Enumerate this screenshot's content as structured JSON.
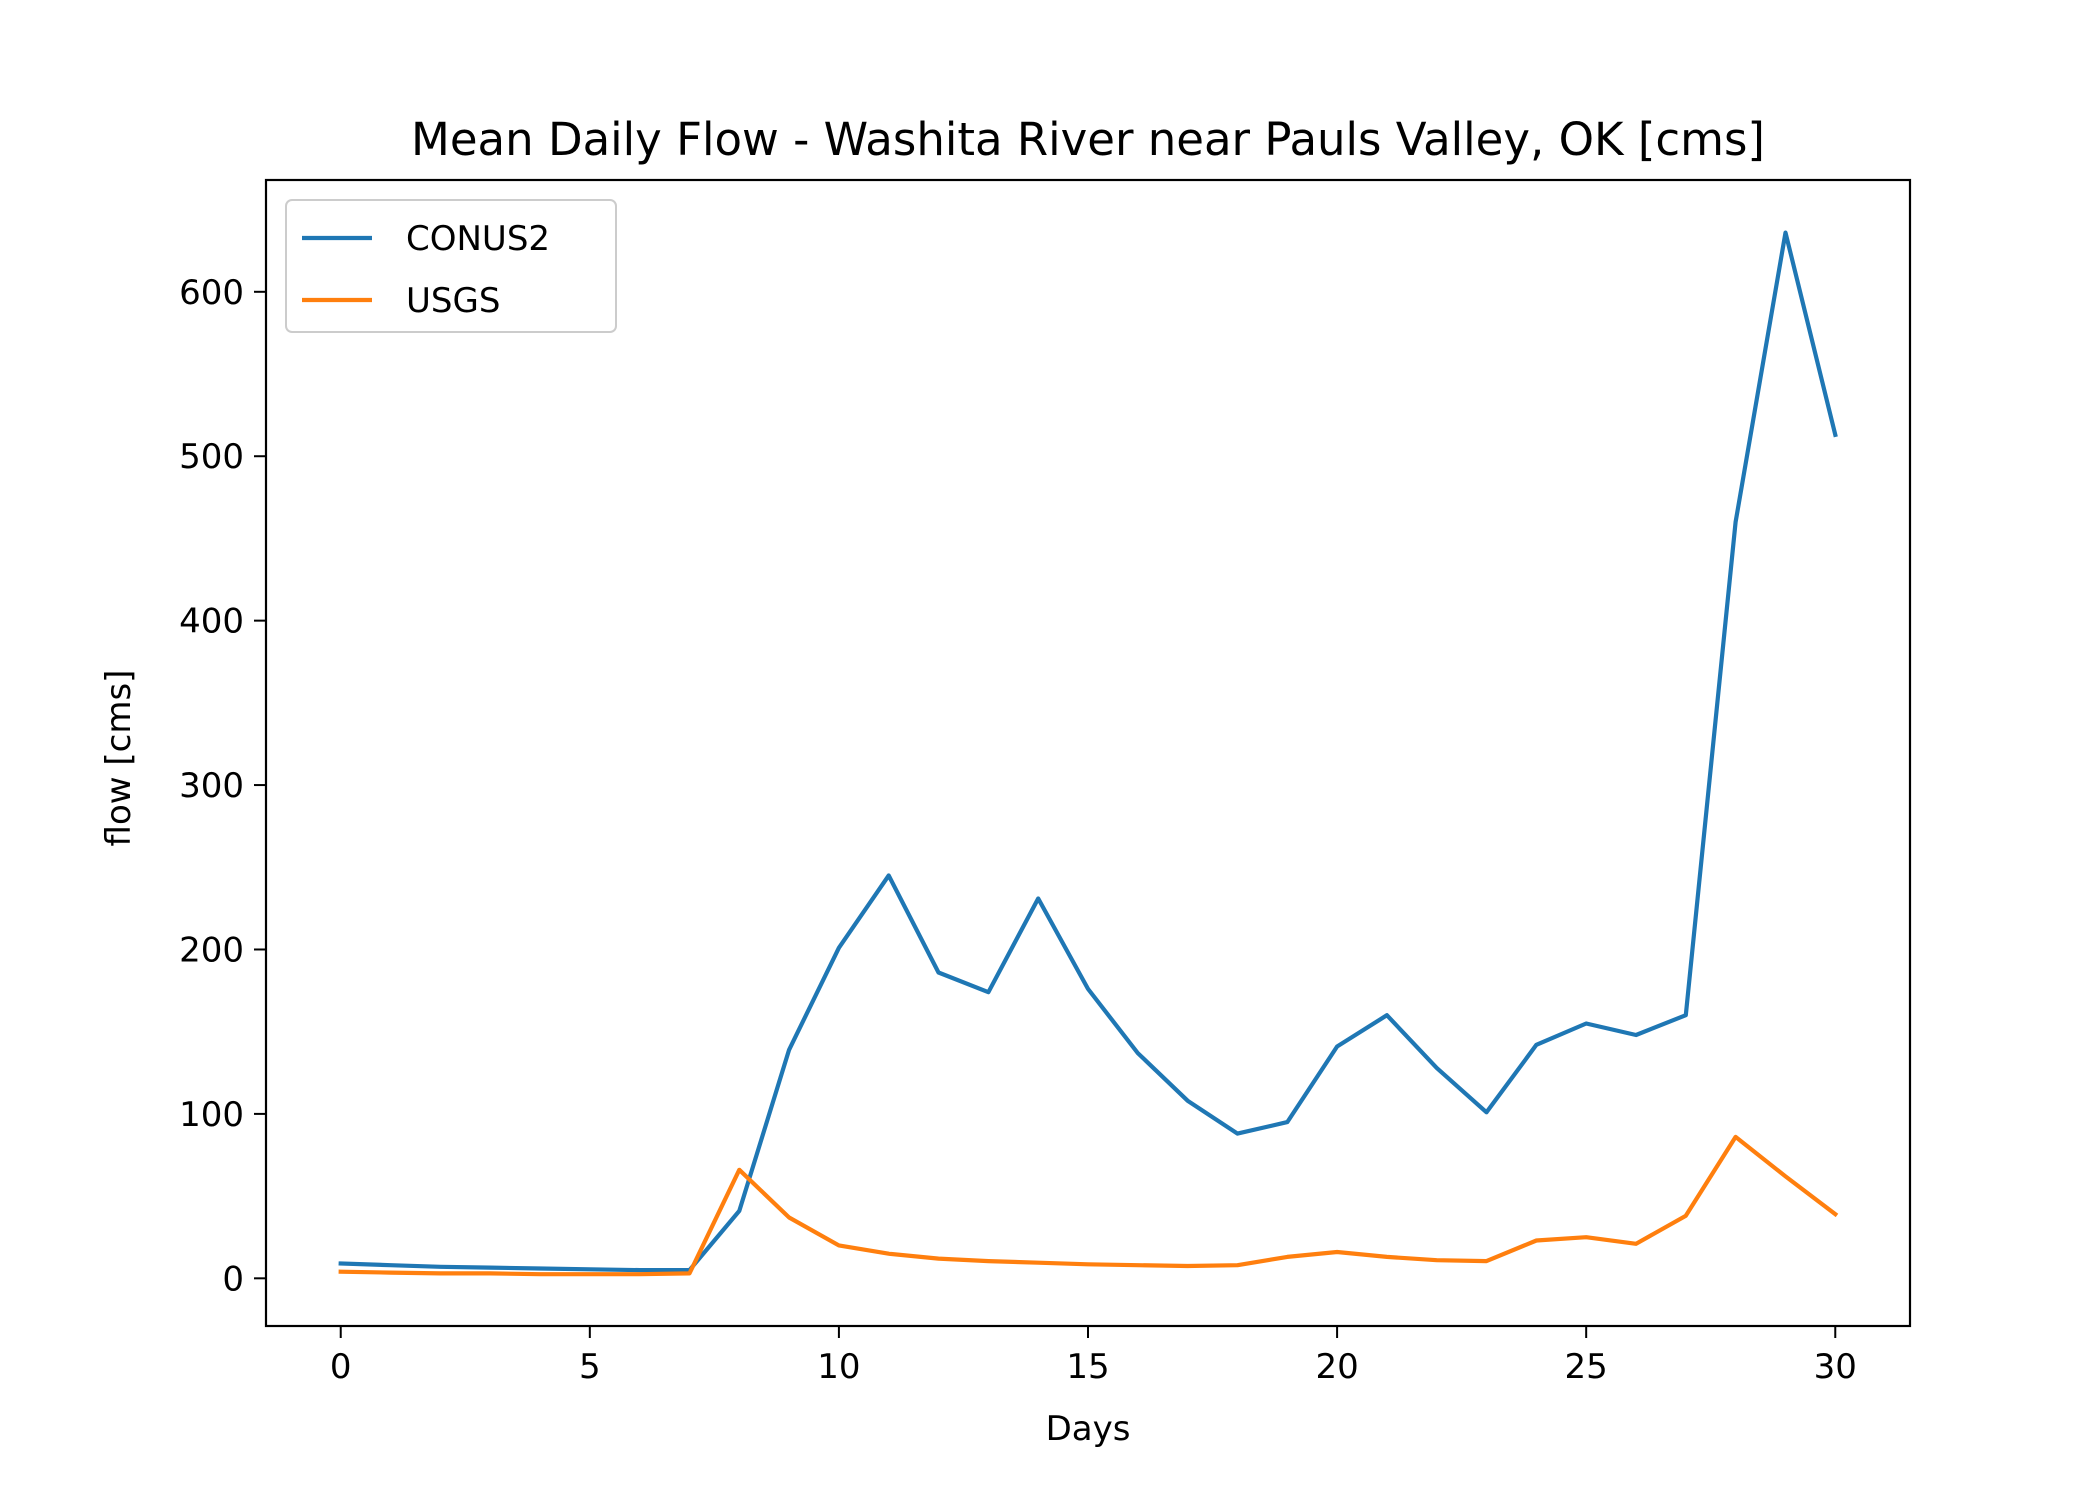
{
  "chart_data": {
    "type": "line",
    "title": "Mean Daily Flow - Washita River near Pauls Valley, OK [cms]",
    "xlabel": "Days",
    "ylabel": "flow [cms]",
    "xlim": [
      -1.5,
      31.5
    ],
    "ylim": [
      -29,
      668
    ],
    "xticks": [
      0,
      5,
      10,
      15,
      20,
      25,
      30
    ],
    "yticks": [
      0,
      100,
      200,
      300,
      400,
      500,
      600
    ],
    "grid": false,
    "legend_position": "top-left",
    "x": [
      0,
      1,
      2,
      3,
      4,
      5,
      6,
      7,
      8,
      9,
      10,
      11,
      12,
      13,
      14,
      15,
      16,
      17,
      18,
      19,
      20,
      21,
      22,
      23,
      24,
      25,
      26,
      27,
      28,
      29,
      30
    ],
    "series": [
      {
        "name": "CONUS2",
        "color": "#1f77b4",
        "values": [
          9,
          8,
          7,
          6.5,
          6,
          5.5,
          5,
          5,
          41,
          139,
          201,
          245,
          186,
          174,
          231,
          176,
          137,
          108,
          88,
          95,
          141,
          160,
          128,
          101,
          142,
          155,
          148,
          160,
          460,
          636,
          513
        ]
      },
      {
        "name": "USGS",
        "color": "#ff7f0e",
        "values": [
          4,
          3.5,
          3,
          3,
          2.5,
          2.5,
          2.5,
          3,
          66,
          37,
          20,
          15,
          12,
          10.5,
          9.5,
          8.5,
          8,
          7.5,
          8,
          13,
          16,
          13,
          11,
          10.5,
          23,
          25,
          21,
          38,
          86,
          62,
          39
        ]
      }
    ]
  }
}
